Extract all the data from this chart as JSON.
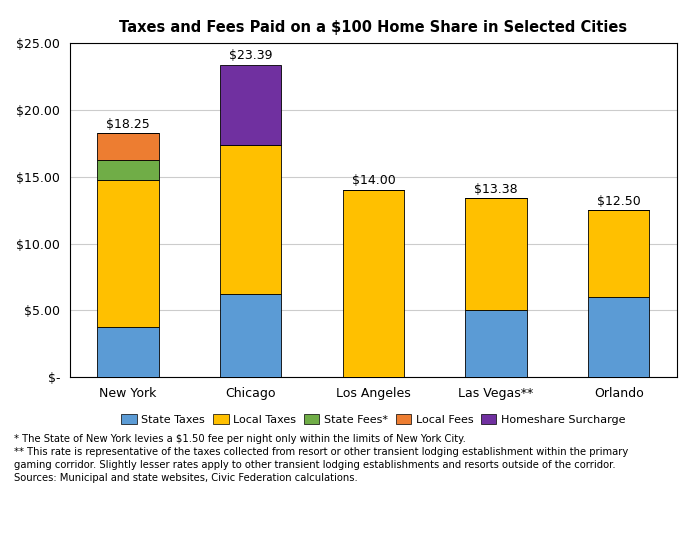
{
  "title": "Taxes and Fees Paid on a $100 Home Share in Selected Cities",
  "categories": [
    "New York",
    "Chicago",
    "Los Angeles",
    "Las Vegas**",
    "Orlando"
  ],
  "series": {
    "State Taxes": [
      3.75,
      6.25,
      0.0,
      5.0,
      6.0
    ],
    "Local Taxes": [
      11.0,
      11.14,
      14.0,
      8.38,
      6.5
    ],
    "State Fees*": [
      1.5,
      0.0,
      0.0,
      0.0,
      0.0
    ],
    "Local Fees": [
      2.0,
      0.0,
      0.0,
      0.0,
      0.0
    ],
    "Homeshare Surcharge": [
      0.0,
      6.0,
      0.0,
      0.0,
      0.0
    ]
  },
  "totals": [
    "$18.25",
    "$23.39",
    "$14.00",
    "$13.38",
    "$12.50"
  ],
  "totals_vals": [
    18.25,
    23.39,
    14.0,
    13.38,
    12.5
  ],
  "colors": {
    "State Taxes": "#5B9BD5",
    "Local Taxes": "#FFC000",
    "State Fees*": "#70AD47",
    "Local Fees": "#ED7D31",
    "Homeshare Surcharge": "#7030A0"
  },
  "ylim": [
    0,
    25
  ],
  "yticks": [
    0,
    5,
    10,
    15,
    20,
    25
  ],
  "ytick_labels": [
    "$-",
    "$5.00",
    "$10.00",
    "$15.00",
    "$20.00",
    "$25.00"
  ],
  "footnote1": "* The State of New York levies a $1.50 fee per night only within the limits of New York City.",
  "footnote2": "** This rate is representative of the taxes collected from resort or other transient lodging establishment within the primary",
  "footnote3": "gaming corridor. Slightly lesser rates apply to other transient lodging establishments and resorts outside of the corridor.",
  "footnote4": "Sources: Municipal and state websites, Civic Federation calculations.",
  "bar_width": 0.5,
  "figsize": [
    6.98,
    5.39
  ],
  "dpi": 100
}
